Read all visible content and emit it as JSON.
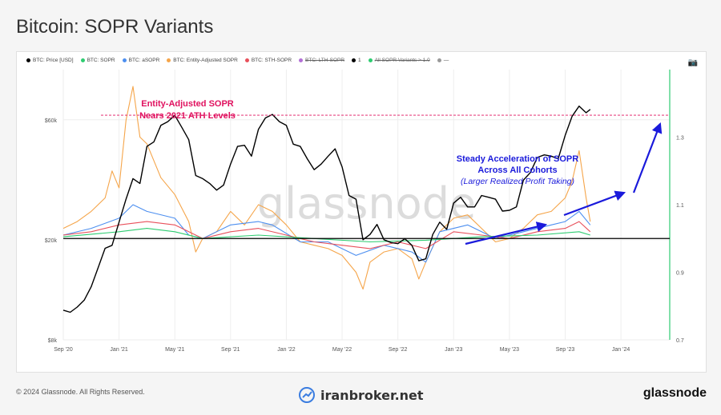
{
  "title": "Bitcoin: SOPR Variants",
  "legend": [
    {
      "label": "BTC: Price [USD]",
      "color": "#000000",
      "strike": false
    },
    {
      "label": "BTC: SOPR",
      "color": "#2ecc71",
      "strike": false
    },
    {
      "label": "BTC: aSOPR",
      "color": "#4d8ff0",
      "strike": false
    },
    {
      "label": "BTC: Entity-Adjusted SOPR",
      "color": "#f5a54a",
      "strike": false
    },
    {
      "label": "BTC: STH-SOPR",
      "color": "#e8505b",
      "strike": false
    },
    {
      "label": "BTC: LTH-SOPR",
      "color": "#b26fd6",
      "strike": true
    },
    {
      "label": "1",
      "color": "#000000",
      "strike": false
    },
    {
      "label": "All SOPR Variants > 1.0",
      "color": "#2ecc71",
      "strike": true
    },
    {
      "label": "—",
      "color": "#999999",
      "strike": false
    }
  ],
  "annotations": {
    "ath_line1": "Entity-Adjusted SOPR",
    "ath_line2": "Nears 2021 ATH Levels",
    "accel_line1": "Steady Acceleration of SOPR",
    "accel_line2": "Across All Cohorts",
    "accel_line3": "(Larger Realized Profit Taking)"
  },
  "watermark": "glassnode",
  "footer": {
    "copyright": "© 2024 Glassnode. All Rights Reserved.",
    "center_brand": "iranbroker.net",
    "right_brand": "glassnode"
  },
  "colors": {
    "price": "#000000",
    "sopr": "#2ecc71",
    "asopr": "#4d8ff0",
    "entity_sopr": "#f5a54a",
    "sth_sopr": "#e8505b",
    "annotation_red": "#e0115f",
    "annotation_blue": "#1a1adb",
    "right_axis_line": "#2ecc71"
  },
  "chart_data": {
    "type": "line",
    "title": "Bitcoin: SOPR Variants",
    "x_ticks": [
      "Sep '20",
      "Jan '21",
      "May '21",
      "Sep '21",
      "Jan '22",
      "May '22",
      "Sep '22",
      "Jan '23",
      "May '23",
      "Sep '23",
      "Jan '24"
    ],
    "y_left": {
      "scale": "log",
      "ticks": [
        "$8k",
        "$20k",
        "$60k"
      ],
      "values": [
        8000,
        20000,
        60000
      ],
      "range": [
        8000,
        95000
      ]
    },
    "y_right": {
      "ticks": [
        "0.7",
        "0.9",
        "1.1",
        "1.3"
      ],
      "values": [
        0.7,
        0.9,
        1.1,
        1.3
      ],
      "range": [
        0.7,
        1.5
      ]
    },
    "x_months_range": [
      0,
      43.5
    ],
    "reference_lines": [
      {
        "axis": "right",
        "value": 1.0,
        "label": "1"
      },
      {
        "axis": "right",
        "value": 1.365,
        "style": "dashed",
        "color": "#e0115f"
      }
    ],
    "series": [
      {
        "name": "BTC: Price [USD]",
        "axis": "left",
        "points": [
          [
            0,
            10500
          ],
          [
            0.5,
            10300
          ],
          [
            1,
            10800
          ],
          [
            1.5,
            11500
          ],
          [
            2,
            13000
          ],
          [
            2.5,
            15500
          ],
          [
            3,
            18500
          ],
          [
            3.5,
            19000
          ],
          [
            4,
            23500
          ],
          [
            4.5,
            29000
          ],
          [
            5,
            35000
          ],
          [
            5.5,
            33500
          ],
          [
            6,
            47000
          ],
          [
            6.5,
            49000
          ],
          [
            7,
            57000
          ],
          [
            7.5,
            59000
          ],
          [
            8,
            62500
          ],
          [
            8.5,
            56000
          ],
          [
            9,
            50000
          ],
          [
            9.5,
            36000
          ],
          [
            10,
            35000
          ],
          [
            10.5,
            33500
          ],
          [
            11,
            31500
          ],
          [
            11.5,
            33000
          ],
          [
            12,
            40000
          ],
          [
            12.5,
            47000
          ],
          [
            13,
            47500
          ],
          [
            13.5,
            43000
          ],
          [
            14,
            55000
          ],
          [
            14.5,
            61000
          ],
          [
            15,
            63000
          ],
          [
            15.5,
            59000
          ],
          [
            16,
            57000
          ],
          [
            16.5,
            48000
          ],
          [
            17,
            47000
          ],
          [
            17.5,
            42000
          ],
          [
            18,
            38000
          ],
          [
            18.5,
            40000
          ],
          [
            19,
            43000
          ],
          [
            19.5,
            46000
          ],
          [
            20,
            39000
          ],
          [
            20.5,
            30000
          ],
          [
            21,
            29000
          ],
          [
            21.5,
            20000
          ],
          [
            22,
            21000
          ],
          [
            22.5,
            23000
          ],
          [
            23,
            20000
          ],
          [
            23.5,
            19500
          ],
          [
            24,
            19300
          ],
          [
            24.5,
            20200
          ],
          [
            25,
            19000
          ],
          [
            25.5,
            16500
          ],
          [
            26,
            16800
          ],
          [
            26.5,
            21000
          ],
          [
            27,
            23500
          ],
          [
            27.5,
            22000
          ],
          [
            28,
            28000
          ],
          [
            28.5,
            29500
          ],
          [
            29,
            27000
          ],
          [
            29.5,
            27000
          ],
          [
            30,
            30000
          ],
          [
            30.5,
            29500
          ],
          [
            31,
            29000
          ],
          [
            31.5,
            26000
          ],
          [
            32,
            26200
          ],
          [
            32.5,
            27000
          ],
          [
            33,
            34500
          ],
          [
            33.5,
            37000
          ],
          [
            34,
            42500
          ],
          [
            34.5,
            43500
          ],
          [
            35,
            43000
          ],
          [
            35.5,
            42000
          ],
          [
            36,
            52000
          ],
          [
            36.5,
            62000
          ],
          [
            37,
            68000
          ],
          [
            37.5,
            64000
          ],
          [
            37.8,
            66000
          ]
        ]
      },
      {
        "name": "BTC: Entity-Adjusted SOPR",
        "axis": "right",
        "points": [
          [
            0,
            1.03
          ],
          [
            1,
            1.05
          ],
          [
            2,
            1.08
          ],
          [
            3,
            1.12
          ],
          [
            3.5,
            1.2
          ],
          [
            4,
            1.15
          ],
          [
            4.5,
            1.35
          ],
          [
            5,
            1.45
          ],
          [
            5.5,
            1.3
          ],
          [
            6,
            1.28
          ],
          [
            7,
            1.18
          ],
          [
            8,
            1.13
          ],
          [
            9,
            1.05
          ],
          [
            9.5,
            0.96
          ],
          [
            10,
            1.0
          ],
          [
            11,
            1.02
          ],
          [
            12,
            1.08
          ],
          [
            13,
            1.04
          ],
          [
            14,
            1.1
          ],
          [
            15,
            1.08
          ],
          [
            16,
            1.04
          ],
          [
            17,
            0.99
          ],
          [
            18,
            0.98
          ],
          [
            19,
            0.97
          ],
          [
            20,
            0.95
          ],
          [
            21,
            0.9
          ],
          [
            21.5,
            0.85
          ],
          [
            22,
            0.93
          ],
          [
            23,
            0.96
          ],
          [
            24,
            0.97
          ],
          [
            25,
            0.94
          ],
          [
            25.5,
            0.88
          ],
          [
            26,
            0.93
          ],
          [
            27,
            1.02
          ],
          [
            28,
            1.06
          ],
          [
            29,
            1.07
          ],
          [
            30,
            1.03
          ],
          [
            31,
            0.99
          ],
          [
            32,
            1.0
          ],
          [
            33,
            1.03
          ],
          [
            34,
            1.07
          ],
          [
            35,
            1.08
          ],
          [
            36,
            1.12
          ],
          [
            36.5,
            1.17
          ],
          [
            37,
            1.26
          ],
          [
            37.5,
            1.12
          ],
          [
            37.8,
            1.05
          ]
        ]
      },
      {
        "name": "BTC: aSOPR",
        "axis": "right",
        "points": [
          [
            0,
            1.01
          ],
          [
            2,
            1.03
          ],
          [
            4,
            1.06
          ],
          [
            5,
            1.1
          ],
          [
            6,
            1.08
          ],
          [
            8,
            1.06
          ],
          [
            9,
            1.01
          ],
          [
            10,
            1.0
          ],
          [
            12,
            1.04
          ],
          [
            14,
            1.05
          ],
          [
            15,
            1.04
          ],
          [
            17,
            0.99
          ],
          [
            19,
            0.99
          ],
          [
            21,
            0.95
          ],
          [
            23,
            0.98
          ],
          [
            25,
            0.96
          ],
          [
            26,
            0.93
          ],
          [
            27,
            1.02
          ],
          [
            29,
            1.04
          ],
          [
            31,
            1.0
          ],
          [
            33,
            1.02
          ],
          [
            35,
            1.04
          ],
          [
            36,
            1.05
          ],
          [
            37,
            1.08
          ],
          [
            37.8,
            1.04
          ]
        ]
      },
      {
        "name": "BTC: STH-SOPR",
        "axis": "right",
        "points": [
          [
            0,
            1.01
          ],
          [
            2,
            1.02
          ],
          [
            4,
            1.04
          ],
          [
            6,
            1.05
          ],
          [
            8,
            1.04
          ],
          [
            10,
            1.0
          ],
          [
            12,
            1.02
          ],
          [
            14,
            1.03
          ],
          [
            16,
            1.01
          ],
          [
            18,
            0.99
          ],
          [
            20,
            0.98
          ],
          [
            22,
            0.97
          ],
          [
            24,
            0.99
          ],
          [
            26,
            0.97
          ],
          [
            28,
            1.02
          ],
          [
            30,
            1.01
          ],
          [
            32,
            1.0
          ],
          [
            34,
            1.02
          ],
          [
            36,
            1.03
          ],
          [
            37,
            1.05
          ],
          [
            37.8,
            1.02
          ]
        ]
      },
      {
        "name": "BTC: SOPR",
        "axis": "right",
        "points": [
          [
            0,
            1.005
          ],
          [
            4,
            1.02
          ],
          [
            6,
            1.03
          ],
          [
            8,
            1.02
          ],
          [
            10,
            1.0
          ],
          [
            14,
            1.01
          ],
          [
            18,
            1.0
          ],
          [
            22,
            0.99
          ],
          [
            26,
            0.995
          ],
          [
            30,
            1.005
          ],
          [
            34,
            1.01
          ],
          [
            37,
            1.02
          ],
          [
            37.8,
            1.01
          ]
        ]
      }
    ]
  }
}
